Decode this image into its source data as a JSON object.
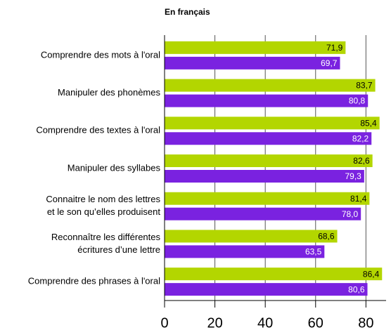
{
  "chart_data": {
    "type": "hbar",
    "title": "En français",
    "categories": [
      [
        "Comprendre des mots à l'oral"
      ],
      [
        "Manipuler des phonèmes"
      ],
      [
        "Comprendre des textes à l'oral"
      ],
      [
        "Manipuler des syllabes"
      ],
      [
        "Connaitre le nom des lettres",
        "et le son qu’elles produisent"
      ],
      [
        "Reconnaître les différentes",
        "écritures d’une lettre"
      ],
      [
        "Comprendre des phrases à l'oral"
      ]
    ],
    "series": [
      {
        "color": "#b3d600",
        "label_color": "#000000",
        "values": [
          71.9,
          83.7,
          85.4,
          82.6,
          81.4,
          68.6,
          86.4
        ],
        "value_labels": [
          "71,9",
          "83,7",
          "85,4",
          "82,6",
          "81,4",
          "68,6",
          "86,4"
        ]
      },
      {
        "color": "#7a22e0",
        "label_color": "#ffffff",
        "values": [
          69.7,
          80.8,
          82.2,
          79.3,
          78.0,
          63.5,
          80.6
        ],
        "value_labels": [
          "69,7",
          "80,8",
          "82,2",
          "79,3",
          "78,0",
          "63,5",
          "80,6"
        ]
      }
    ],
    "xlim": [
      0,
      88
    ],
    "xticks": [
      0,
      20,
      40,
      60,
      80
    ],
    "grid": true
  }
}
